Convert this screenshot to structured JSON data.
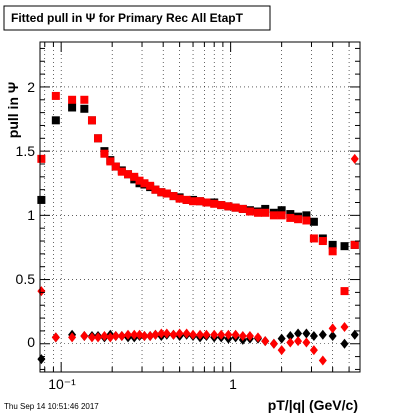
{
  "chart_data": {
    "type": "scatter",
    "title": "Fitted pull in Ψ  for Primary Rec All EtapT",
    "xlabel": "pT/|q| (GeV/c)",
    "ylabel": "pull in  Ψ",
    "footer": "Thu Sep 14 10:51:46 2017",
    "xscale": "log",
    "xlim": [
      0.075,
      5.8
    ],
    "ylim": [
      -0.22,
      2.35
    ],
    "grid": true,
    "x_tick_labels": [
      "10⁻¹",
      "1"
    ],
    "y_tick_labels": [
      "0",
      "0.5",
      "1",
      "1.5",
      "2"
    ],
    "colors": {
      "black_series": "#000000",
      "red_series": "#ff0000"
    },
    "series": [
      {
        "marker": "square",
        "color": "#000000",
        "x": [
          0.0764,
          0.093,
          0.116,
          0.137,
          0.152,
          0.165,
          0.18,
          0.195,
          0.21,
          0.228,
          0.248,
          0.27,
          0.29,
          0.31,
          0.335,
          0.36,
          0.39,
          0.42,
          0.46,
          0.5,
          0.55,
          0.6,
          0.66,
          0.72,
          0.8,
          0.88,
          0.97,
          1.07,
          1.18,
          1.3,
          1.45,
          1.6,
          1.8,
          2.0,
          2.25,
          2.5,
          2.8,
          3.1,
          3.5,
          4.0,
          4.7,
          5.4
        ],
        "y": [
          1.12,
          1.74,
          1.84,
          1.83,
          1.74,
          1.6,
          1.5,
          1.43,
          1.38,
          1.35,
          1.32,
          1.28,
          1.25,
          1.24,
          1.22,
          1.2,
          1.18,
          1.17,
          1.15,
          1.14,
          1.12,
          1.12,
          1.11,
          1.1,
          1.1,
          1.08,
          1.07,
          1.06,
          1.05,
          1.04,
          1.03,
          1.05,
          1.02,
          1.04,
          1.01,
          0.99,
          1.0,
          0.95,
          0.82,
          0.77,
          0.76,
          0.77
        ]
      },
      {
        "marker": "square",
        "color": "#ff0000",
        "x": [
          0.0764,
          0.093,
          0.116,
          0.137,
          0.152,
          0.165,
          0.18,
          0.195,
          0.21,
          0.228,
          0.248,
          0.27,
          0.29,
          0.31,
          0.335,
          0.36,
          0.39,
          0.42,
          0.46,
          0.5,
          0.55,
          0.6,
          0.66,
          0.72,
          0.8,
          0.88,
          0.97,
          1.07,
          1.18,
          1.3,
          1.45,
          1.6,
          1.8,
          2.0,
          2.25,
          2.5,
          2.8,
          3.1,
          3.5,
          4.0,
          4.7,
          5.4
        ],
        "y": [
          1.44,
          1.93,
          1.9,
          1.9,
          1.74,
          1.6,
          1.48,
          1.42,
          1.38,
          1.34,
          1.32,
          1.3,
          1.27,
          1.25,
          1.23,
          1.2,
          1.18,
          1.17,
          1.15,
          1.13,
          1.12,
          1.11,
          1.11,
          1.1,
          1.09,
          1.08,
          1.07,
          1.06,
          1.05,
          1.03,
          1.02,
          1.02,
          1.0,
          1.0,
          0.98,
          0.97,
          0.96,
          0.82,
          0.8,
          0.72,
          0.41,
          0.77
        ]
      },
      {
        "marker": "diamond",
        "color": "#000000",
        "x": [
          0.0764,
          0.093,
          0.116,
          0.137,
          0.152,
          0.165,
          0.18,
          0.195,
          0.21,
          0.228,
          0.248,
          0.27,
          0.29,
          0.31,
          0.335,
          0.36,
          0.39,
          0.42,
          0.46,
          0.5,
          0.55,
          0.6,
          0.66,
          0.72,
          0.8,
          0.88,
          0.97,
          1.07,
          1.18,
          1.3,
          1.45,
          1.6,
          1.8,
          2.0,
          2.25,
          2.5,
          2.8,
          3.1,
          3.5,
          4.0,
          4.7,
          5.4
        ],
        "y": [
          -0.12,
          0.05,
          0.07,
          0.06,
          0.06,
          0.06,
          0.05,
          0.07,
          0.06,
          0.06,
          0.05,
          0.05,
          0.06,
          0.06,
          0.06,
          0.07,
          0.06,
          0.07,
          0.07,
          0.06,
          0.07,
          0.06,
          0.05,
          0.06,
          0.05,
          0.05,
          0.04,
          0.05,
          0.03,
          0.04,
          0.04,
          0.02,
          0.0,
          0.04,
          0.06,
          0.08,
          0.08,
          0.06,
          0.07,
          0.06,
          0.0,
          0.07
        ]
      },
      {
        "marker": "diamond",
        "color": "#ff0000",
        "x": [
          0.0764,
          0.093,
          0.116,
          0.137,
          0.152,
          0.165,
          0.18,
          0.195,
          0.21,
          0.228,
          0.248,
          0.27,
          0.29,
          0.31,
          0.335,
          0.36,
          0.39,
          0.42,
          0.46,
          0.5,
          0.55,
          0.6,
          0.66,
          0.72,
          0.8,
          0.88,
          0.97,
          1.07,
          1.18,
          1.3,
          1.45,
          1.6,
          1.8,
          2.0,
          2.25,
          2.5,
          2.8,
          3.1,
          3.5,
          4.0,
          4.7,
          5.4
        ],
        "y": [
          0.41,
          0.05,
          0.05,
          0.06,
          0.05,
          0.05,
          0.06,
          0.05,
          0.06,
          0.06,
          0.07,
          0.07,
          0.07,
          0.06,
          0.06,
          0.07,
          0.08,
          0.08,
          0.07,
          0.08,
          0.08,
          0.07,
          0.07,
          0.07,
          0.07,
          0.07,
          0.07,
          0.07,
          0.06,
          0.06,
          0.05,
          0.02,
          0.0,
          -0.05,
          0.01,
          0.02,
          0.01,
          -0.05,
          -0.13,
          0.12,
          0.13,
          1.44
        ]
      }
    ]
  }
}
